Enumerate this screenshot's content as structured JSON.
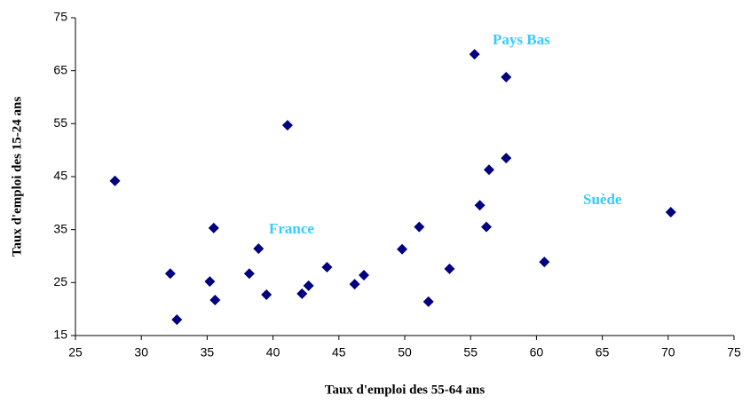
{
  "chart_data": {
    "type": "scatter",
    "x_label": "Taux d'emploi des 55-64 ans",
    "y_label": "Taux d'emploi des 15-24 ans",
    "color": "#000080",
    "x": [
      28.0,
      32.2,
      32.7,
      35.2,
      35.5,
      35.6,
      38.2,
      38.9,
      39.5,
      41.1,
      42.2,
      42.7,
      44.1,
      46.2,
      46.9,
      49.8,
      51.1,
      51.8,
      53.4,
      55.3,
      55.7,
      56.2,
      56.4,
      57.7,
      57.7,
      60.6,
      70.2
    ],
    "values": [
      44.2,
      26.7,
      18.0,
      25.2,
      35.3,
      21.7,
      26.7,
      31.4,
      22.7,
      54.7,
      22.9,
      24.4,
      27.9,
      24.7,
      26.4,
      31.3,
      35.5,
      21.4,
      27.6,
      68.1,
      39.6,
      35.5,
      46.3,
      63.8,
      48.5,
      28.9,
      38.3
    ],
    "annotations": [
      "Pays Bas",
      "France",
      "Suède"
    ],
    "annotation_color": "#33ccff",
    "xlim": [
      25,
      75
    ],
    "xticks": [
      25,
      30,
      35,
      40,
      45,
      50,
      55,
      60,
      65,
      70,
      75
    ],
    "ylim": [
      15,
      75
    ],
    "yticks": [
      15,
      25,
      35,
      45,
      55,
      65,
      75
    ],
    "grid": false
  }
}
